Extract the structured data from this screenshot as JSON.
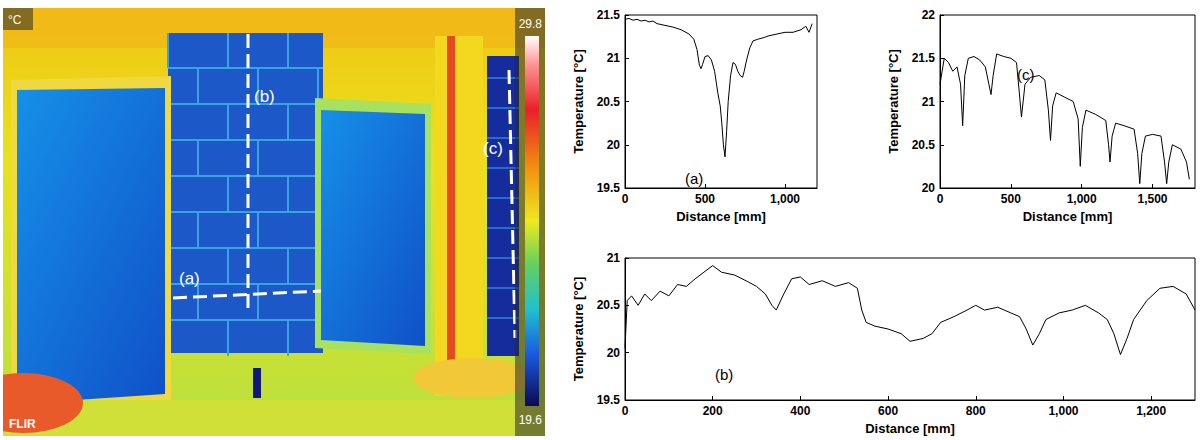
{
  "thermal_image": {
    "unit": "°C",
    "scale_max": 29.8,
    "scale_min": 19.6,
    "brand": "FLIR",
    "profile_labels": [
      "(a)",
      "(b)",
      "(c)"
    ]
  },
  "chart_data": [
    {
      "type": "line",
      "title": "(a)",
      "x_label": "Distance [mm]",
      "y_label": "Temperature [°C]",
      "color": "#000000",
      "grid": false,
      "xlim": [
        0,
        1200
      ],
      "xticks": [
        0,
        500,
        1000
      ],
      "ylim": [
        19.5,
        21.5
      ],
      "yticks": [
        19.5,
        20,
        20.5,
        21,
        21.5
      ],
      "x": [
        0,
        25,
        50,
        75,
        100,
        125,
        150,
        175,
        200,
        250,
        300,
        350,
        400,
        430,
        450,
        465,
        475,
        485,
        500,
        520,
        540,
        560,
        580,
        595,
        605,
        615,
        625,
        635,
        645,
        660,
        675,
        690,
        705,
        720,
        735,
        745,
        760,
        780,
        800,
        830,
        870,
        900,
        950,
        1000,
        1050,
        1100,
        1130,
        1150,
        1170
      ],
      "values": [
        21.45,
        21.46,
        21.44,
        21.45,
        21.43,
        21.44,
        21.42,
        21.43,
        21.4,
        21.38,
        21.36,
        21.33,
        21.28,
        21.22,
        21.1,
        20.92,
        20.88,
        20.93,
        21.02,
        21.03,
        20.98,
        20.85,
        20.6,
        20.45,
        20.25,
        20.0,
        19.86,
        20.15,
        20.5,
        20.8,
        20.95,
        20.93,
        20.85,
        20.8,
        20.78,
        20.85,
        20.98,
        21.12,
        21.2,
        21.22,
        21.24,
        21.26,
        21.28,
        21.3,
        21.3,
        21.33,
        21.37,
        21.3,
        21.4
      ]
    },
    {
      "type": "line",
      "title": "(b)",
      "x_label": "Distance [mm]",
      "y_label": "Temperature [°C]",
      "color": "#000000",
      "grid": false,
      "xlim": [
        0,
        1300
      ],
      "xticks": [
        0,
        200,
        400,
        600,
        800,
        1000,
        1200
      ],
      "ylim": [
        19.5,
        21
      ],
      "yticks": [
        19.5,
        20,
        20.5,
        21
      ],
      "x": [
        0,
        5,
        15,
        30,
        45,
        60,
        80,
        100,
        120,
        140,
        160,
        180,
        200,
        220,
        250,
        280,
        300,
        320,
        335,
        345,
        360,
        380,
        400,
        420,
        450,
        480,
        510,
        530,
        540,
        550,
        570,
        600,
        630,
        650,
        680,
        700,
        720,
        750,
        780,
        800,
        820,
        850,
        880,
        900,
        915,
        930,
        945,
        960,
        990,
        1020,
        1050,
        1080,
        1100,
        1115,
        1130,
        1145,
        1160,
        1190,
        1220,
        1250,
        1280,
        1300
      ],
      "values": [
        20.05,
        20.55,
        20.6,
        20.5,
        20.62,
        20.55,
        20.65,
        20.6,
        20.72,
        20.7,
        20.78,
        20.85,
        20.92,
        20.85,
        20.82,
        20.75,
        20.7,
        20.62,
        20.5,
        20.45,
        20.6,
        20.78,
        20.8,
        20.72,
        20.76,
        20.7,
        20.74,
        20.68,
        20.45,
        20.32,
        20.28,
        20.25,
        20.2,
        20.12,
        20.15,
        20.2,
        20.32,
        20.38,
        20.45,
        20.5,
        20.45,
        20.48,
        20.42,
        20.38,
        20.25,
        20.08,
        20.2,
        20.35,
        20.42,
        20.45,
        20.5,
        20.42,
        20.35,
        20.2,
        19.98,
        20.15,
        20.35,
        20.55,
        20.68,
        20.7,
        20.62,
        20.45
      ]
    },
    {
      "type": "line",
      "title": "(c)",
      "x_label": "Distance [mm]",
      "y_label": "Temperature [°C]",
      "color": "#000000",
      "grid": false,
      "xlim": [
        0,
        1800
      ],
      "xticks": [
        0,
        500,
        1000,
        1500
      ],
      "ylim": [
        20,
        22
      ],
      "yticks": [
        20,
        20.5,
        21,
        21.5,
        22
      ],
      "x": [
        0,
        30,
        60,
        90,
        120,
        145,
        160,
        175,
        200,
        240,
        280,
        320,
        345,
        360,
        375,
        400,
        450,
        500,
        540,
        560,
        575,
        600,
        640,
        700,
        740,
        765,
        780,
        795,
        820,
        880,
        940,
        975,
        990,
        1005,
        1030,
        1100,
        1170,
        1190,
        1200,
        1215,
        1240,
        1300,
        1370,
        1395,
        1410,
        1425,
        1450,
        1500,
        1560,
        1585,
        1600,
        1615,
        1640,
        1700,
        1740,
        1760
      ],
      "values": [
        21.2,
        21.5,
        21.45,
        21.35,
        21.4,
        21.2,
        20.72,
        21.3,
        21.5,
        21.52,
        21.48,
        21.4,
        21.2,
        21.08,
        21.3,
        21.55,
        21.52,
        21.5,
        21.45,
        21.1,
        20.82,
        21.2,
        21.28,
        21.3,
        21.25,
        20.9,
        20.55,
        20.95,
        21.1,
        21.05,
        21.0,
        20.8,
        20.25,
        20.7,
        20.9,
        20.85,
        20.78,
        20.5,
        20.3,
        20.6,
        20.75,
        20.72,
        20.68,
        20.4,
        20.05,
        20.4,
        20.6,
        20.62,
        20.6,
        20.3,
        20.05,
        20.3,
        20.5,
        20.45,
        20.3,
        20.1
      ]
    }
  ]
}
